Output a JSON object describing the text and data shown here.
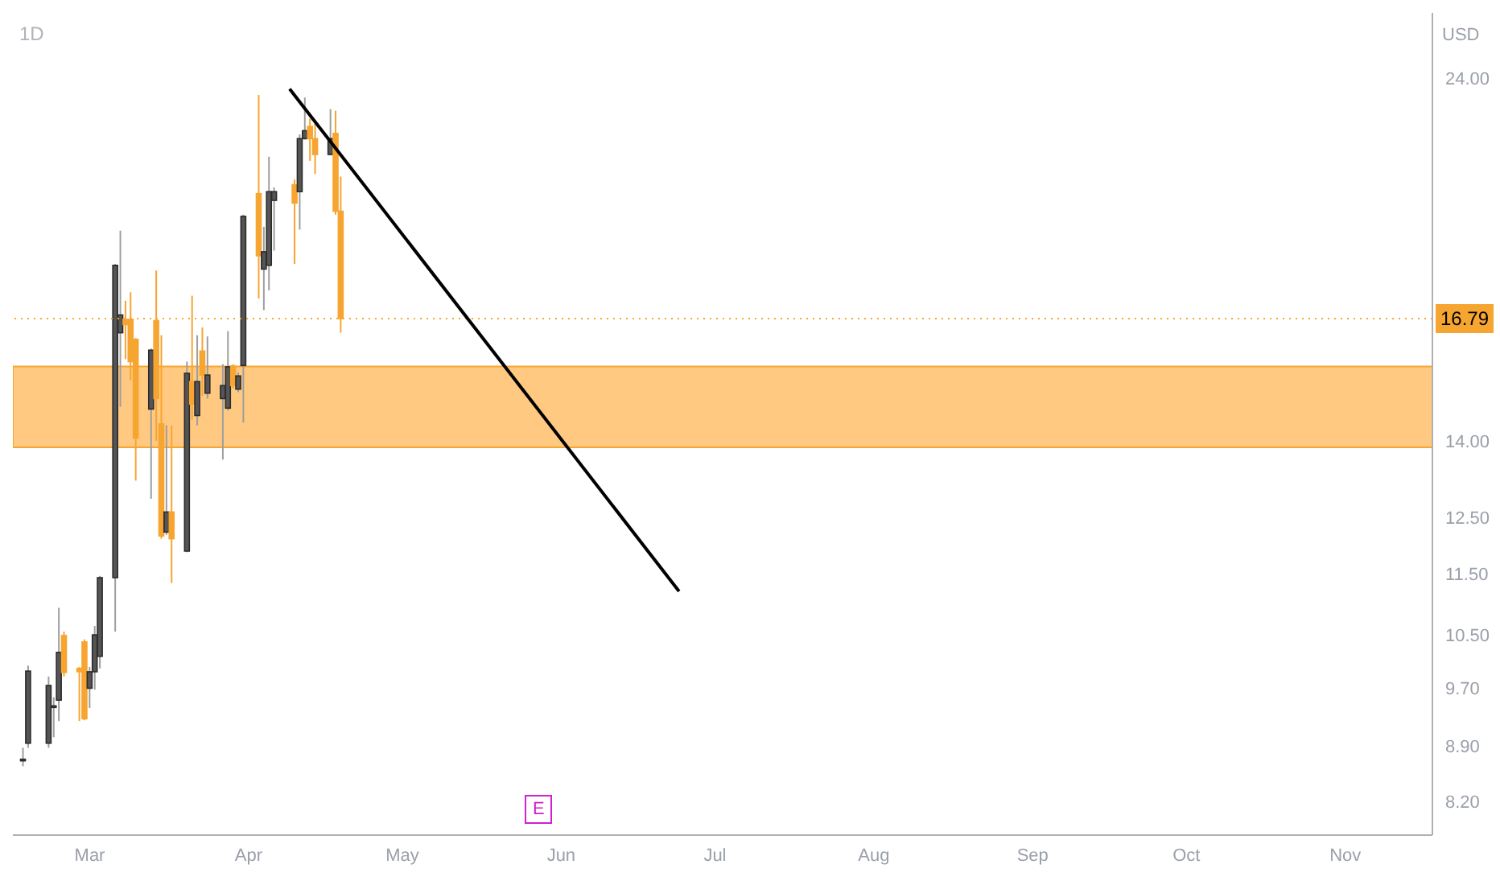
{
  "chart_data": {
    "type": "candlestick",
    "title": "1D",
    "ylabel": "USD",
    "log": true,
    "x": [
      "--02-16",
      "--02-17",
      "--02-21",
      "--02-22",
      "--02-23",
      "--02-24",
      "--02-27",
      "--02-28",
      "--03-01",
      "--03-02",
      "--03-03",
      "--03-06",
      "--03-07",
      "--03-08",
      "--03-09",
      "--03-10",
      "--03-13",
      "--03-14",
      "--03-15",
      "--03-16",
      "--03-17",
      "--03-20",
      "--03-21",
      "--03-22",
      "--03-23",
      "--03-24",
      "--03-27",
      "--03-28",
      "--03-29",
      "--03-30",
      "--03-31",
      "--04-03",
      "--04-04",
      "--04-05",
      "--04-06",
      "--04-10",
      "--04-11",
      "--04-12",
      "--04-13",
      "--04-14",
      "--04-17",
      "--04-18",
      "--04-19"
    ],
    "ohlc": [
      [
        8.72,
        8.88,
        8.64,
        8.73
      ],
      [
        8.94,
        10.03,
        8.88,
        9.95
      ],
      [
        8.94,
        9.87,
        8.88,
        9.74
      ],
      [
        9.43,
        9.57,
        9.02,
        9.45
      ],
      [
        9.53,
        10.93,
        9.24,
        10.23
      ],
      [
        10.49,
        10.55,
        9.87,
        9.93
      ],
      [
        9.99,
        10.01,
        9.24,
        9.94
      ],
      [
        10.39,
        10.43,
        9.25,
        9.27
      ],
      [
        9.7,
        10.01,
        9.42,
        9.94
      ],
      [
        9.94,
        10.64,
        9.68,
        10.5
      ],
      [
        10.17,
        11.46,
        9.99,
        11.43
      ],
      [
        11.43,
        18.21,
        10.55,
        18.17
      ],
      [
        16.44,
        19.13,
        14.73,
        16.88
      ],
      [
        16.77,
        17.24,
        15.81,
        16.64
      ],
      [
        16.77,
        17.46,
        15.32,
        15.75
      ],
      [
        16.28,
        16.31,
        13.2,
        14.06
      ],
      [
        14.68,
        16.06,
        12.85,
        16.02
      ],
      [
        16.74,
        18.03,
        14.0,
        14.91
      ],
      [
        14.36,
        16.38,
        12.11,
        12.16
      ],
      [
        12.23,
        14.33,
        12.18,
        12.6
      ],
      [
        12.6,
        14.33,
        11.34,
        12.11
      ],
      [
        11.89,
        15.75,
        11.87,
        15.48
      ],
      [
        15.29,
        17.37,
        14.45,
        14.79
      ],
      [
        14.54,
        16.38,
        14.33,
        15.29
      ],
      [
        16.0,
        16.57,
        14.97,
        15.44
      ],
      [
        15.03,
        16.35,
        14.91,
        15.44
      ],
      [
        14.91,
        15.69,
        13.62,
        15.2
      ],
      [
        14.7,
        16.48,
        14.65,
        15.63
      ],
      [
        15.65,
        15.69,
        15.14,
        15.2
      ],
      [
        15.12,
        15.5,
        15.05,
        15.42
      ],
      [
        15.66,
        19.59,
        14.39,
        19.54
      ],
      [
        20.21,
        23.4,
        17.3,
        18.43
      ],
      [
        18.07,
        19.24,
        17.0,
        18.54
      ],
      [
        18.17,
        21.35,
        17.51,
        20.27
      ],
      [
        20.01,
        20.4,
        18.57,
        20.27
      ],
      [
        20.48,
        20.64,
        18.21,
        19.93
      ],
      [
        20.27,
        22.07,
        19.16,
        21.93
      ],
      [
        21.93,
        23.31,
        21.9,
        22.19
      ],
      [
        22.33,
        22.59,
        21.22,
        21.93
      ],
      [
        21.93,
        22.42,
        20.81,
        21.42
      ],
      [
        21.42,
        22.91,
        21.39,
        21.93
      ],
      [
        22.1,
        22.86,
        19.59,
        19.69
      ],
      [
        19.69,
        20.73,
        16.44,
        16.79
      ]
    ],
    "colors": [
      "#2b2b2b",
      "#2b2b2b",
      "#2b2b2b",
      "#2b2b2b",
      "#2b2b2b",
      "#f7a531",
      "#f7a531",
      "#f7a531",
      "#2b2b2b",
      "#2b2b2b",
      "#2b2b2b",
      "#2b2b2b",
      "#2b2b2b",
      "#f7a531",
      "#f7a531",
      "#f7a531",
      "#2b2b2b",
      "#f7a531",
      "#f7a531",
      "#2b2b2b",
      "#f7a531",
      "#2b2b2b",
      "#f7a531",
      "#2b2b2b",
      "#f7a531",
      "#2b2b2b",
      "#2b2b2b",
      "#2b2b2b",
      "#f7a531",
      "#2b2b2b",
      "#2b2b2b",
      "#f7a531",
      "#2b2b2b",
      "#2b2b2b",
      "#2b2b2b",
      "#f7a531",
      "#2b2b2b",
      "#2b2b2b",
      "#f7a531",
      "#f7a531",
      "#2b2b2b",
      "#f7a531",
      "#f7a531"
    ],
    "series": [
      {
        "type": "line",
        "color": "#000000",
        "x": [
          "--04-09",
          "--06-24"
        ],
        "values": [
          23.61,
          11.2
        ]
      }
    ],
    "xlim": [
      "--02-14",
      "--11-18"
    ],
    "xticks": [
      {
        "value": "--03-01",
        "label": "Mar"
      },
      {
        "value": "--04-01",
        "label": "Apr"
      },
      {
        "value": "--05-01",
        "label": "May"
      },
      {
        "value": "--06-01",
        "label": "Jun"
      },
      {
        "value": "--07-01",
        "label": "Jul"
      },
      {
        "value": "--08-01",
        "label": "Aug"
      },
      {
        "value": "--09-01",
        "label": "Sep"
      },
      {
        "value": "--10-01",
        "label": "Oct"
      },
      {
        "value": "--11-01",
        "label": "Nov"
      }
    ],
    "ylim": [
      7.8,
      26.43
    ],
    "yticks": [
      {
        "value": 8.2,
        "label": "8.20"
      },
      {
        "value": 8.9,
        "label": "8.90"
      },
      {
        "value": 9.7,
        "label": "9.70"
      },
      {
        "value": 10.5,
        "label": "10.50"
      },
      {
        "value": 11.5,
        "label": "11.50"
      },
      {
        "value": 12.5,
        "label": "12.50"
      },
      {
        "value": 14,
        "label": "14.00"
      },
      {
        "value": 24,
        "label": "24.00"
      }
    ],
    "ref_lines": [
      {
        "axis": "y",
        "value": 16.79,
        "label": "16.79",
        "color": "#f7a531",
        "line_style": "dotted"
      }
    ],
    "bands": [
      {
        "axis": "y",
        "from": 13.87,
        "to": 15.64,
        "color": "#ffbf6b"
      }
    ],
    "annotations": [
      "E"
    ]
  }
}
